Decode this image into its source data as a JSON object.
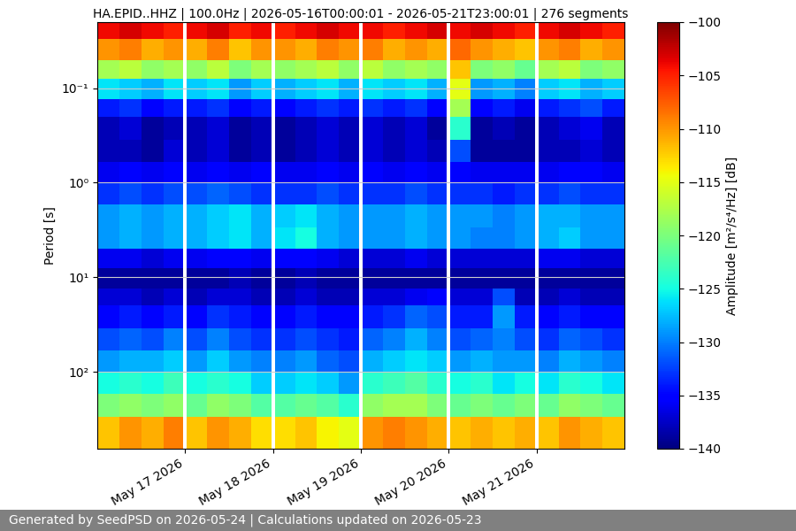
{
  "chart_data": {
    "type": "heatmap",
    "title": "HA.EPID..HHZ | 100.0Hz | 2026-05-16T00:00:01 - 2026-05-21T23:00:01 | 276 segments",
    "y_label": "Period [s]",
    "colorbar_label": "Amplitude [m²/s⁴/Hz] [dB]",
    "footer": "Generated by SeedPSD on 2026-05-24 | Calculations updated on 2026-05-23",
    "log": "y",
    "grid": true,
    "xlim": [
      "2026-05-16T00:00",
      "2026-05-22T00:00"
    ],
    "xticks": [
      {
        "value": "2026-05-17T00:00",
        "label": "May 17 2026"
      },
      {
        "value": "2026-05-18T00:00",
        "label": "May 18 2026"
      },
      {
        "value": "2026-05-19T00:00",
        "label": "May 19 2026"
      },
      {
        "value": "2026-05-20T00:00",
        "label": "May 20 2026"
      },
      {
        "value": "2026-05-21T00:00",
        "label": "May 21 2026"
      }
    ],
    "ylim": [
      650,
      0.02
    ],
    "yticks": [
      {
        "value": 0.1,
        "label": "10⁻¹"
      },
      {
        "value": 1,
        "label": "10⁰"
      },
      {
        "value": 10,
        "label": "10¹"
      },
      {
        "value": 100,
        "label": "10²"
      }
    ],
    "colorbar_range": [
      -140,
      -100
    ],
    "colorbar_ticks": [
      {
        "value": -140,
        "label": "−140"
      },
      {
        "value": -135,
        "label": "−135"
      },
      {
        "value": -130,
        "label": "−130"
      },
      {
        "value": -125,
        "label": "−125"
      },
      {
        "value": -120,
        "label": "−120"
      },
      {
        "value": -115,
        "label": "−115"
      },
      {
        "value": -110,
        "label": "−110"
      },
      {
        "value": -105,
        "label": "−105"
      },
      {
        "value": -100,
        "label": "−100"
      }
    ],
    "x_edges": [
      "2026-05-16T00:00",
      "2026-05-16T06:00",
      "2026-05-16T12:00",
      "2026-05-16T18:00",
      "2026-05-16T23:30",
      "2026-05-17T00:30",
      "2026-05-17T06:00",
      "2026-05-17T12:00",
      "2026-05-17T18:00",
      "2026-05-17T23:30",
      "2026-05-18T00:30",
      "2026-05-18T06:00",
      "2026-05-18T12:00",
      "2026-05-18T18:00",
      "2026-05-18T23:30",
      "2026-05-19T00:30",
      "2026-05-19T06:00",
      "2026-05-19T12:00",
      "2026-05-19T18:00",
      "2026-05-19T23:30",
      "2026-05-20T00:30",
      "2026-05-20T06:00",
      "2026-05-20T12:00",
      "2026-05-20T18:00",
      "2026-05-20T23:30",
      "2026-05-21T00:30",
      "2026-05-21T06:00",
      "2026-05-21T12:00",
      "2026-05-21T18:00",
      "2026-05-22T00:00"
    ],
    "y_edges": [
      0.02,
      0.03,
      0.05,
      0.08,
      0.13,
      0.2,
      0.35,
      0.6,
      1,
      1.7,
      3,
      5,
      8,
      13,
      20,
      35,
      60,
      100,
      170,
      300,
      650
    ],
    "cells": [
      [
        -104,
        -103,
        -104,
        -105,
        null,
        -104,
        -103,
        -105,
        -104,
        null,
        -105,
        -104,
        -103,
        -104,
        null,
        -104,
        -105,
        -104,
        -103,
        null,
        -104,
        -103,
        -104,
        -105,
        null,
        -104,
        -103,
        -104,
        -105
      ],
      [
        -110,
        -109,
        -111,
        -110,
        null,
        -111,
        -109,
        -112,
        -110,
        null,
        -110,
        -111,
        -109,
        -110,
        null,
        -109,
        -111,
        -110,
        -111,
        null,
        -108,
        -110,
        -111,
        -112,
        null,
        -110,
        -109,
        -111,
        -110
      ],
      [
        -118,
        -117,
        -119,
        -118,
        null,
        -119,
        -117,
        -120,
        -118,
        null,
        -119,
        -118,
        -117,
        -119,
        null,
        -117,
        -119,
        -118,
        -119,
        null,
        -112,
        -120,
        -119,
        -121,
        null,
        -118,
        -117,
        -120,
        -119
      ],
      [
        -126,
        -127,
        -128,
        -126,
        null,
        -127,
        -126,
        -129,
        -127,
        null,
        -128,
        -127,
        -126,
        -128,
        null,
        -126,
        -127,
        -126,
        -128,
        null,
        -115,
        -129,
        -128,
        -130,
        null,
        -127,
        -126,
        -128,
        -127
      ],
      [
        -134,
        -133,
        -135,
        -134,
        null,
        -134,
        -133,
        -135,
        -134,
        null,
        -135,
        -134,
        -133,
        -134,
        null,
        -133,
        -134,
        -133,
        -135,
        null,
        -118,
        -135,
        -134,
        -136,
        null,
        -134,
        -133,
        -132,
        -134
      ],
      [
        -138,
        -137,
        -139,
        -138,
        null,
        -138,
        -137,
        -139,
        -138,
        null,
        -139,
        -138,
        -137,
        -138,
        null,
        -137,
        -138,
        -137,
        -139,
        null,
        -124,
        -139,
        -138,
        -139,
        null,
        -138,
        -137,
        -136,
        -138
      ],
      [
        -138,
        -138,
        -139,
        -137,
        null,
        -138,
        -137,
        -139,
        -138,
        null,
        -139,
        -138,
        -137,
        -138,
        null,
        -137,
        -138,
        -137,
        -138,
        null,
        -132,
        -139,
        -139,
        -139,
        null,
        -138,
        -138,
        -137,
        -138
      ],
      [
        -136,
        -135,
        -136,
        -135,
        null,
        -136,
        -135,
        -136,
        -135,
        null,
        -136,
        -136,
        -135,
        -136,
        null,
        -135,
        -136,
        -135,
        -136,
        null,
        -135,
        -136,
        -136,
        -136,
        null,
        -136,
        -135,
        -135,
        -136
      ],
      [
        -133,
        -132,
        -133,
        -132,
        null,
        -132,
        -131,
        -132,
        -133,
        null,
        -133,
        -133,
        -132,
        -133,
        null,
        -133,
        -133,
        -132,
        -133,
        null,
        -133,
        -133,
        -134,
        -133,
        null,
        -133,
        -132,
        -133,
        -133
      ],
      [
        -129,
        -128,
        -129,
        -128,
        null,
        -128,
        -127,
        -126,
        -128,
        null,
        -127,
        -126,
        -128,
        -129,
        null,
        -129,
        -129,
        -128,
        -129,
        null,
        -129,
        -129,
        -130,
        -129,
        null,
        -128,
        -128,
        -129,
        -129
      ],
      [
        -129,
        -128,
        -129,
        -128,
        null,
        -128,
        -127,
        -126,
        -128,
        null,
        -126,
        -125,
        -128,
        -129,
        null,
        -129,
        -129,
        -128,
        -129,
        null,
        -129,
        -130,
        -130,
        -129,
        null,
        -128,
        -127,
        -129,
        -129
      ],
      [
        -136,
        -136,
        -137,
        -136,
        null,
        -136,
        -135,
        -135,
        -136,
        null,
        -135,
        -135,
        -136,
        -137,
        null,
        -137,
        -137,
        -136,
        -137,
        null,
        -137,
        -137,
        -137,
        -137,
        null,
        -136,
        -136,
        -137,
        -137
      ],
      [
        -139,
        -139,
        -139,
        -139,
        null,
        -139,
        -139,
        -138,
        -139,
        null,
        -139,
        -138,
        -139,
        -139,
        null,
        -139,
        -139,
        -139,
        -139,
        null,
        -139,
        -139,
        -139,
        -139,
        null,
        -139,
        -139,
        -139,
        -139
      ],
      [
        -137,
        -137,
        -138,
        -137,
        null,
        -138,
        -137,
        -137,
        -138,
        null,
        -138,
        -137,
        -138,
        -138,
        null,
        -137,
        -137,
        -136,
        -135,
        null,
        -137,
        -137,
        -132,
        -138,
        null,
        -138,
        -137,
        -138,
        -138
      ],
      [
        -135,
        -134,
        -135,
        -134,
        null,
        -135,
        -133,
        -134,
        -135,
        null,
        -135,
        -134,
        -135,
        -135,
        null,
        -134,
        -133,
        -131,
        -132,
        null,
        -134,
        -134,
        -129,
        -134,
        null,
        -135,
        -134,
        -135,
        -135
      ],
      [
        -132,
        -131,
        -132,
        -130,
        null,
        -132,
        -130,
        -132,
        -133,
        null,
        -133,
        -132,
        -133,
        -134,
        null,
        -131,
        -130,
        -128,
        -130,
        null,
        -132,
        -131,
        -130,
        -132,
        null,
        -133,
        -131,
        -132,
        -133
      ],
      [
        -129,
        -128,
        -128,
        -127,
        null,
        -129,
        -127,
        -129,
        -130,
        null,
        -130,
        -129,
        -131,
        -132,
        null,
        -128,
        -127,
        -126,
        -127,
        null,
        -129,
        -128,
        -129,
        -129,
        null,
        -130,
        -128,
        -129,
        -130
      ],
      [
        -125,
        -124,
        -125,
        -123,
        null,
        -125,
        -124,
        -125,
        -127,
        null,
        -127,
        -126,
        -127,
        -129,
        null,
        -124,
        -123,
        -122,
        -124,
        null,
        -125,
        -124,
        -126,
        -125,
        null,
        -126,
        -124,
        -125,
        -126
      ],
      [
        -120,
        -119,
        -120,
        -119,
        null,
        -121,
        -119,
        -120,
        -122,
        null,
        -122,
        -121,
        -122,
        -124,
        null,
        -119,
        -118,
        -118,
        -120,
        null,
        -121,
        -120,
        -121,
        -120,
        null,
        -121,
        -119,
        -120,
        -121
      ],
      [
        -112,
        -110,
        -111,
        -109,
        null,
        -112,
        -110,
        -111,
        -113,
        null,
        -113,
        -112,
        -114,
        -115,
        null,
        -110,
        -109,
        -110,
        -111,
        null,
        -112,
        -111,
        -112,
        -111,
        null,
        -112,
        -110,
        -111,
        -112
      ]
    ]
  }
}
